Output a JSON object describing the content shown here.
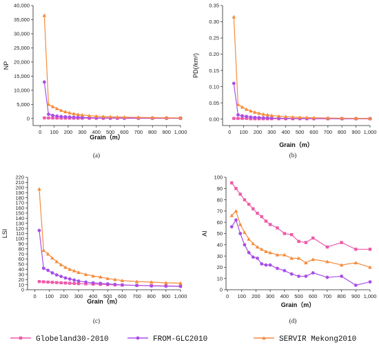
{
  "colors": {
    "Globeland30-2010": "#ee5aaa",
    "FROM-GLC2010": "#a84ee8",
    "SERVIR Mekong2010": "#f58b3a"
  },
  "legend": [
    {
      "name": "Globeland30-2010",
      "marker": "square"
    },
    {
      "name": "FROM-GLC2010",
      "marker": "circle"
    },
    {
      "name": "SERVIR Mekong2010",
      "marker": "triangle"
    }
  ],
  "chart_data": [
    {
      "type": "line",
      "panel_label": "(a)",
      "xlabel": "Grain（m）",
      "ylabel": "NP",
      "xlim": [
        -50,
        1000
      ],
      "ylim": [
        -2500,
        40000
      ],
      "xticks": [
        0,
        100,
        200,
        300,
        400,
        500,
        600,
        700,
        800,
        900,
        "1,000"
      ],
      "yticks": [
        "0",
        "5,000",
        "10,000",
        "15,000",
        "20,000",
        "25,000",
        "30,000",
        "35,000",
        "40,000"
      ],
      "x": [
        30,
        60,
        90,
        120,
        150,
        180,
        210,
        240,
        270,
        300,
        350,
        400,
        450,
        500,
        550,
        600,
        700,
        800,
        900,
        1000
      ],
      "series": [
        {
          "name": "Globeland30-2010",
          "values": [
            200,
            180,
            160,
            150,
            140,
            130,
            120,
            110,
            100,
            100,
            90,
            90,
            80,
            80,
            80,
            70,
            70,
            60,
            60,
            60
          ]
        },
        {
          "name": "FROM-GLC2010",
          "values": [
            12900,
            1500,
            1100,
            850,
            700,
            600,
            520,
            460,
            410,
            370,
            320,
            280,
            250,
            230,
            210,
            190,
            170,
            150,
            140,
            130
          ]
        },
        {
          "name": "SERVIR Mekong2010",
          "values": [
            36500,
            5000,
            4200,
            3500,
            2900,
            2400,
            2000,
            1700,
            1450,
            1250,
            1000,
            850,
            720,
            620,
            540,
            470,
            380,
            310,
            260,
            220
          ]
        }
      ]
    },
    {
      "type": "line",
      "panel_label": "(b)",
      "xlabel": "Grain（m）",
      "ylabel": "PD(/km²)",
      "xlim": [
        -50,
        1000
      ],
      "ylim": [
        -0.02,
        0.35
      ],
      "xticks": [
        0,
        100,
        200,
        300,
        400,
        500,
        600,
        700,
        800,
        900,
        "1,000"
      ],
      "yticks": [
        "0.00",
        "0.05",
        "0.10",
        "0.15",
        "0.20",
        "0.25",
        "0.30",
        "0.35"
      ],
      "x": [
        30,
        60,
        90,
        120,
        150,
        180,
        210,
        240,
        270,
        300,
        350,
        400,
        450,
        500,
        550,
        600,
        700,
        800,
        900,
        1000
      ],
      "series": [
        {
          "name": "Globeland30-2010",
          "values": [
            0.002,
            0.002,
            0.002,
            0.002,
            0.001,
            0.001,
            0.001,
            0.001,
            0.001,
            0.001,
            0.001,
            0.001,
            0.001,
            0.001,
            0.001,
            0.001,
            0.001,
            0.001,
            0.001,
            0.001
          ]
        },
        {
          "name": "FROM-GLC2010",
          "values": [
            0.11,
            0.013,
            0.01,
            0.008,
            0.006,
            0.005,
            0.0045,
            0.004,
            0.0035,
            0.003,
            0.0028,
            0.0025,
            0.0022,
            0.002,
            0.0018,
            0.0017,
            0.0015,
            0.0013,
            0.0012,
            0.0011
          ]
        },
        {
          "name": "SERVIR Mekong2010",
          "values": [
            0.315,
            0.045,
            0.037,
            0.03,
            0.025,
            0.021,
            0.018,
            0.015,
            0.013,
            0.011,
            0.009,
            0.0075,
            0.0063,
            0.0055,
            0.0048,
            0.0041,
            0.0033,
            0.0027,
            0.0023,
            0.002
          ]
        }
      ]
    },
    {
      "type": "line",
      "panel_label": "(c)",
      "xlabel": "Grain（m）",
      "ylabel": "LSI",
      "xlim": [
        -50,
        1000
      ],
      "ylim": [
        0,
        220
      ],
      "xticks": [
        0,
        100,
        200,
        300,
        400,
        500,
        600,
        700,
        800,
        900,
        "1,000"
      ],
      "yticks": [
        "0",
        "10",
        "20",
        "30",
        "40",
        "50",
        "60",
        "70",
        "80",
        "90",
        "100",
        "110",
        "120",
        "130",
        "140",
        "150",
        "160",
        "170",
        "180",
        "190",
        "200",
        "210",
        "220"
      ],
      "x": [
        30,
        60,
        90,
        120,
        150,
        180,
        210,
        240,
        270,
        300,
        350,
        400,
        450,
        500,
        550,
        600,
        700,
        800,
        900,
        1000
      ],
      "series": [
        {
          "name": "Globeland30-2010",
          "values": [
            16,
            15.5,
            15,
            14.5,
            14,
            13.6,
            13.2,
            12.8,
            12.4,
            12,
            11.5,
            11,
            10.5,
            10,
            9.5,
            9,
            8.5,
            8,
            7.5,
            7
          ]
        },
        {
          "name": "FROM-GLC2010",
          "values": [
            116,
            42,
            38,
            33,
            29,
            26,
            23,
            21,
            19,
            17,
            15,
            13.5,
            12.5,
            11.5,
            10.5,
            9.5,
            8.5,
            7.5,
            7,
            6.5
          ]
        },
        {
          "name": "SERVIR Mekong2010",
          "values": [
            197,
            77,
            70,
            62,
            55,
            49,
            44,
            40,
            37,
            34,
            30,
            27,
            25,
            22,
            20,
            18,
            16,
            15,
            13.5,
            13
          ]
        }
      ]
    },
    {
      "type": "line",
      "panel_label": "(d)",
      "xlabel": "Grain（m）",
      "ylabel": "AI",
      "xlim": [
        -10,
        1000
      ],
      "ylim": [
        0,
        100
      ],
      "xticks": [
        0,
        100,
        200,
        300,
        400,
        500,
        600,
        700,
        800,
        900,
        "1,000"
      ],
      "yticks": [
        "0",
        "10",
        "20",
        "30",
        "40",
        "50",
        "60",
        "70",
        "80",
        "90",
        "100"
      ],
      "x": [
        30,
        60,
        90,
        120,
        150,
        180,
        210,
        240,
        270,
        300,
        350,
        400,
        450,
        500,
        550,
        600,
        700,
        800,
        900,
        1000
      ],
      "series": [
        {
          "name": "Globeland30-2010",
          "values": [
            95,
            90,
            85,
            80,
            76,
            72,
            68,
            65,
            61,
            58,
            55,
            50,
            49,
            43,
            42,
            46,
            38,
            42,
            36,
            36
          ]
        },
        {
          "name": "FROM-GLC2010",
          "values": [
            56,
            62,
            50,
            40,
            33,
            29,
            28,
            23,
            22,
            22,
            19,
            17,
            14,
            12,
            12,
            15,
            11,
            12,
            4,
            7
          ]
        },
        {
          "name": "SERVIR Mekong2010",
          "values": [
            66,
            70,
            58,
            51,
            45,
            41,
            38,
            36,
            34,
            33,
            31,
            31,
            28,
            28,
            24,
            27,
            25,
            22,
            24,
            20
          ]
        }
      ]
    }
  ]
}
